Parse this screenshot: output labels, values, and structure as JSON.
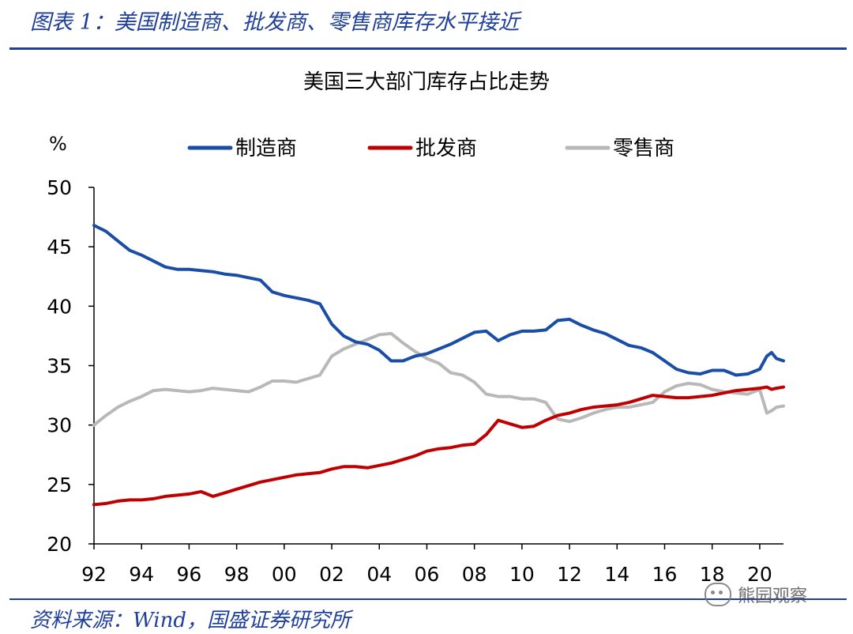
{
  "figure_title": "图表 1：美国制造商、批发商、零售商库存水平接近",
  "source": "资料来源：Wind，国盛证券研究所",
  "watermark": "熊园观察",
  "colors": {
    "manufacturer": "#1a4ea6",
    "wholesaler": "#c00000",
    "retailer": "#b8b8b8",
    "header": "#1f3f9a"
  },
  "chart_data": {
    "type": "line",
    "title": "美国三大部门库存占比走势",
    "ylabel": "%",
    "xlabel": "",
    "ylim": [
      20,
      50
    ],
    "xlim": [
      1992,
      2021
    ],
    "yticks": [
      20,
      25,
      30,
      35,
      40,
      45,
      50
    ],
    "xticks": [
      1992,
      1994,
      1996,
      1998,
      2000,
      2002,
      2004,
      2006,
      2008,
      2010,
      2012,
      2014,
      2016,
      2018,
      2020
    ],
    "xtick_labels": [
      "92",
      "94",
      "96",
      "98",
      "00",
      "02",
      "04",
      "06",
      "08",
      "10",
      "12",
      "14",
      "16",
      "18",
      "20"
    ],
    "legend_position": "top",
    "grid": false,
    "series": [
      {
        "name": "制造商",
        "x": [
          1992.0,
          1992.5,
          1993.0,
          1993.5,
          1994.0,
          1994.5,
          1995.0,
          1995.5,
          1996.0,
          1996.5,
          1997.0,
          1997.5,
          1998.0,
          1998.5,
          1999.0,
          1999.5,
          2000.0,
          2000.5,
          2001.0,
          2001.5,
          2002.0,
          2002.5,
          2003.0,
          2003.5,
          2004.0,
          2004.5,
          2005.0,
          2005.5,
          2006.0,
          2006.5,
          2007.0,
          2007.5,
          2008.0,
          2008.5,
          2009.0,
          2009.5,
          2010.0,
          2010.5,
          2011.0,
          2011.5,
          2012.0,
          2012.5,
          2013.0,
          2013.5,
          2014.0,
          2014.5,
          2015.0,
          2015.5,
          2016.0,
          2016.5,
          2017.0,
          2017.5,
          2018.0,
          2018.5,
          2019.0,
          2019.5,
          2020.0,
          2020.3,
          2020.5,
          2020.7,
          2021.0
        ],
        "values": [
          46.8,
          46.3,
          45.5,
          44.7,
          44.3,
          43.8,
          43.3,
          43.1,
          43.1,
          43.0,
          42.9,
          42.7,
          42.6,
          42.4,
          42.2,
          41.2,
          40.9,
          40.7,
          40.5,
          40.2,
          38.5,
          37.5,
          37.0,
          36.8,
          36.3,
          35.4,
          35.4,
          35.8,
          36.0,
          36.4,
          36.8,
          37.3,
          37.8,
          37.9,
          37.1,
          37.6,
          37.9,
          37.9,
          38.0,
          38.8,
          38.9,
          38.4,
          38.0,
          37.7,
          37.2,
          36.7,
          36.5,
          36.1,
          35.4,
          34.7,
          34.4,
          34.3,
          34.6,
          34.6,
          34.2,
          34.3,
          34.7,
          35.8,
          36.1,
          35.6,
          35.4
        ]
      },
      {
        "name": "批发商",
        "x": [
          1992.0,
          1992.5,
          1993.0,
          1993.5,
          1994.0,
          1994.5,
          1995.0,
          1995.5,
          1996.0,
          1996.5,
          1997.0,
          1997.5,
          1998.0,
          1998.5,
          1999.0,
          1999.5,
          2000.0,
          2000.5,
          2001.0,
          2001.5,
          2002.0,
          2002.5,
          2003.0,
          2003.5,
          2004.0,
          2004.5,
          2005.0,
          2005.5,
          2006.0,
          2006.5,
          2007.0,
          2007.5,
          2008.0,
          2008.5,
          2009.0,
          2009.5,
          2010.0,
          2010.5,
          2011.0,
          2011.5,
          2012.0,
          2012.5,
          2013.0,
          2013.5,
          2014.0,
          2014.5,
          2015.0,
          2015.5,
          2016.0,
          2016.5,
          2017.0,
          2017.5,
          2018.0,
          2018.5,
          2019.0,
          2019.5,
          2020.0,
          2020.3,
          2020.5,
          2020.7,
          2021.0
        ],
        "values": [
          23.3,
          23.4,
          23.6,
          23.7,
          23.7,
          23.8,
          24.0,
          24.1,
          24.2,
          24.4,
          24.0,
          24.3,
          24.6,
          24.9,
          25.2,
          25.4,
          25.6,
          25.8,
          25.9,
          26.0,
          26.3,
          26.5,
          26.5,
          26.4,
          26.6,
          26.8,
          27.1,
          27.4,
          27.8,
          28.0,
          28.1,
          28.3,
          28.4,
          29.2,
          30.4,
          30.1,
          29.8,
          29.9,
          30.4,
          30.8,
          31.0,
          31.3,
          31.5,
          31.6,
          31.7,
          31.9,
          32.2,
          32.5,
          32.4,
          32.3,
          32.3,
          32.4,
          32.5,
          32.7,
          32.9,
          33.0,
          33.1,
          33.2,
          33.0,
          33.1,
          33.2
        ]
      },
      {
        "name": "零售商",
        "x": [
          1992.0,
          1992.5,
          1993.0,
          1993.5,
          1994.0,
          1994.5,
          1995.0,
          1995.5,
          1996.0,
          1996.5,
          1997.0,
          1997.5,
          1998.0,
          1998.5,
          1999.0,
          1999.5,
          2000.0,
          2000.5,
          2001.0,
          2001.5,
          2002.0,
          2002.5,
          2003.0,
          2003.5,
          2004.0,
          2004.5,
          2005.0,
          2005.5,
          2006.0,
          2006.5,
          2007.0,
          2007.5,
          2008.0,
          2008.5,
          2009.0,
          2009.5,
          2010.0,
          2010.5,
          2011.0,
          2011.5,
          2012.0,
          2012.5,
          2013.0,
          2013.5,
          2014.0,
          2014.5,
          2015.0,
          2015.5,
          2016.0,
          2016.5,
          2017.0,
          2017.5,
          2018.0,
          2018.5,
          2019.0,
          2019.5,
          2020.0,
          2020.3,
          2020.5,
          2020.7,
          2021.0
        ],
        "values": [
          30.0,
          30.8,
          31.5,
          32.0,
          32.4,
          32.9,
          33.0,
          32.9,
          32.8,
          32.9,
          33.1,
          33.0,
          32.9,
          32.8,
          33.2,
          33.7,
          33.7,
          33.6,
          33.9,
          34.2,
          35.8,
          36.4,
          36.8,
          37.2,
          37.6,
          37.7,
          36.9,
          36.2,
          35.6,
          35.2,
          34.4,
          34.2,
          33.6,
          32.6,
          32.4,
          32.4,
          32.2,
          32.2,
          31.9,
          30.5,
          30.3,
          30.6,
          31.0,
          31.3,
          31.5,
          31.5,
          31.7,
          31.9,
          32.8,
          33.3,
          33.5,
          33.4,
          33.0,
          32.8,
          32.7,
          32.6,
          33.0,
          31.0,
          31.2,
          31.5,
          31.6
        ]
      }
    ]
  }
}
